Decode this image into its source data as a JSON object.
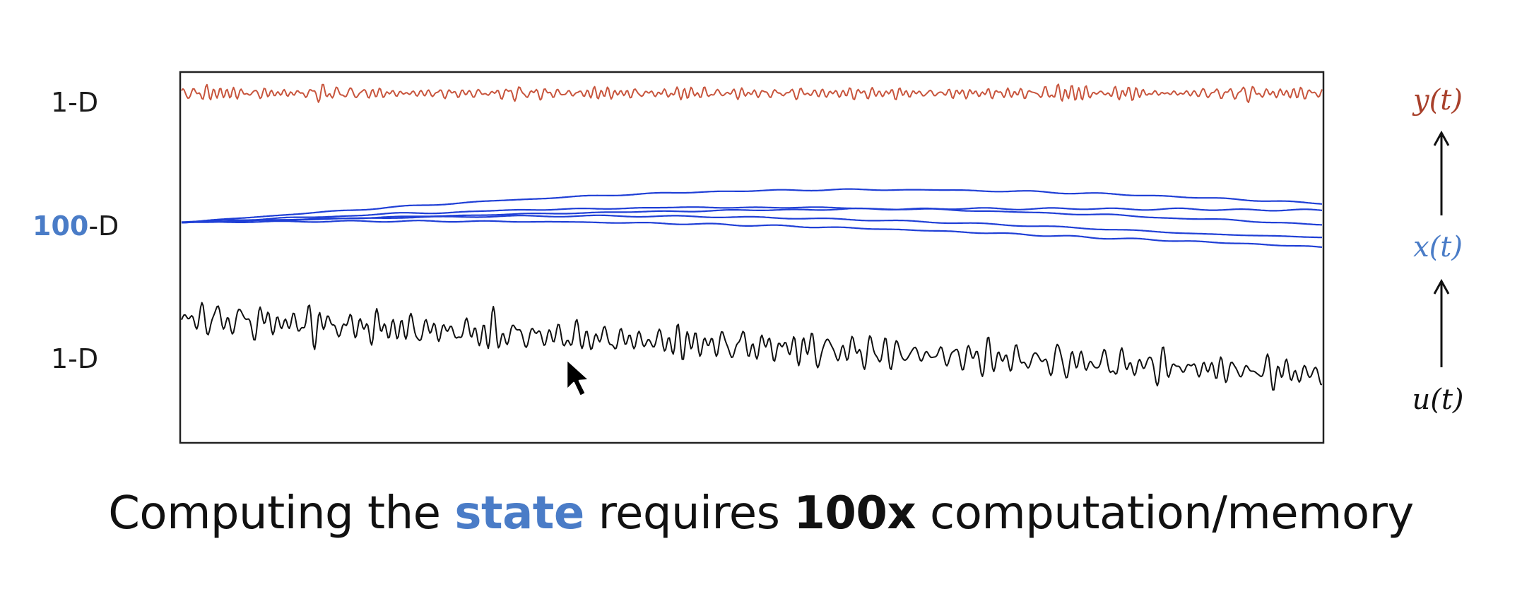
{
  "labels": {
    "top_dim": "1-D",
    "mid_dim_number": "100",
    "mid_dim_suffix": "-D",
    "bottom_dim": "1-D"
  },
  "variables": {
    "output": "y(t)",
    "state": "x(t)",
    "input": "u(t)"
  },
  "caption": {
    "part1": "Computing the ",
    "highlight": "state",
    "part2": " requires ",
    "emphasis": "100x",
    "part3": " computation/memory"
  },
  "colors": {
    "output_line": "#c8553d",
    "state_lines": "#1f3fd6",
    "input_line": "#111111",
    "output_label": "#a8402b",
    "state_label": "#4a7cc7",
    "highlight": "#4a7cc7",
    "frame": "#222222"
  },
  "icons": {
    "arrow_up": "arrow-up-icon",
    "cursor": "mouse-pointer-icon"
  }
}
